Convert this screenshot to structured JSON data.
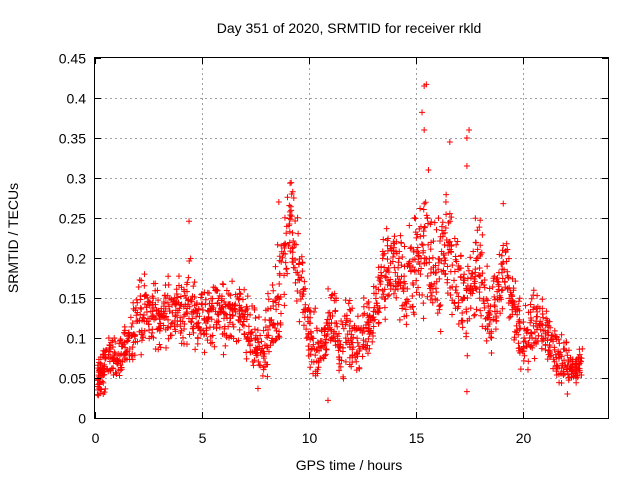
{
  "chart_data": {
    "type": "scatter",
    "title": "Day 351 of 2020, SRMTID for receiver rkld",
    "xlabel": "GPS time / hours",
    "ylabel": "SRMTID / TECUs",
    "xlim": [
      0,
      24
    ],
    "ylim": [
      0,
      0.45
    ],
    "xticks": [
      0,
      5,
      10,
      15,
      20
    ],
    "xtick_labels": [
      "0",
      "5",
      "10",
      "15",
      "20"
    ],
    "yticks": [
      0,
      0.05,
      0.1,
      0.15,
      0.2,
      0.25,
      0.3,
      0.35,
      0.4,
      0.45
    ],
    "ytick_labels": [
      "0",
      "0.05",
      "0.1",
      "0.15",
      "0.2",
      "0.25",
      "0.3",
      "0.35",
      "0.4",
      "0.45"
    ],
    "grid": true,
    "marker": "+",
    "color": "#ff0000",
    "series": [
      {
        "name": "SRMTID",
        "x": [
          0.1,
          0.2,
          0.3,
          0.4,
          0.6,
          0.8,
          1.0,
          1.2,
          1.4,
          1.6,
          1.8,
          2.0,
          2.2,
          2.4,
          2.6,
          2.8,
          3.0,
          3.2,
          3.4,
          3.6,
          3.8,
          4.0,
          4.2,
          4.4,
          4.6,
          4.8,
          5.0,
          5.2,
          5.4,
          5.6,
          5.8,
          6.0,
          6.2,
          6.4,
          6.6,
          6.8,
          7.0,
          7.2,
          7.4,
          7.6,
          7.8,
          8.0,
          8.2,
          8.4,
          8.6,
          8.8,
          9.0,
          9.2,
          9.4,
          9.6,
          9.8,
          10.0,
          10.2,
          10.4,
          10.6,
          10.8,
          11.0,
          11.2,
          11.4,
          11.6,
          11.8,
          12.0,
          12.2,
          12.4,
          12.6,
          12.8,
          13.0,
          13.2,
          13.4,
          13.6,
          13.8,
          14.0,
          14.2,
          14.4,
          14.6,
          14.8,
          15.0,
          15.2,
          15.4,
          15.6,
          15.8,
          16.0,
          16.2,
          16.4,
          16.6,
          16.8,
          17.0,
          17.2,
          17.4,
          17.6,
          17.8,
          18.0,
          18.2,
          18.4,
          18.6,
          18.8,
          19.0,
          19.2,
          19.4,
          19.6,
          19.8,
          20.0,
          20.2,
          20.4,
          20.6,
          20.8,
          21.0,
          21.2,
          21.4,
          21.6,
          21.8,
          22.0,
          22.2,
          22.4,
          22.6,
          22.8
        ],
        "y": [
          0.045,
          0.055,
          0.06,
          0.065,
          0.07,
          0.075,
          0.08,
          0.075,
          0.09,
          0.1,
          0.115,
          0.13,
          0.12,
          0.135,
          0.125,
          0.13,
          0.12,
          0.14,
          0.13,
          0.125,
          0.135,
          0.13,
          0.14,
          0.15,
          0.14,
          0.12,
          0.135,
          0.13,
          0.125,
          0.14,
          0.135,
          0.12,
          0.13,
          0.125,
          0.14,
          0.13,
          0.115,
          0.11,
          0.1,
          0.09,
          0.085,
          0.09,
          0.11,
          0.13,
          0.16,
          0.19,
          0.22,
          0.24,
          0.2,
          0.17,
          0.14,
          0.11,
          0.09,
          0.08,
          0.085,
          0.1,
          0.12,
          0.13,
          0.1,
          0.09,
          0.11,
          0.095,
          0.09,
          0.1,
          0.115,
          0.12,
          0.13,
          0.15,
          0.17,
          0.18,
          0.185,
          0.19,
          0.18,
          0.17,
          0.16,
          0.18,
          0.2,
          0.21,
          0.22,
          0.2,
          0.18,
          0.17,
          0.2,
          0.22,
          0.21,
          0.19,
          0.17,
          0.15,
          0.14,
          0.16,
          0.18,
          0.2,
          0.15,
          0.13,
          0.12,
          0.14,
          0.18,
          0.2,
          0.16,
          0.13,
          0.12,
          0.11,
          0.1,
          0.11,
          0.12,
          0.13,
          0.12,
          0.1,
          0.09,
          0.08,
          0.075,
          0.07,
          0.065,
          0.06,
          0.06,
          0.065
        ],
        "spread": [
          0.02,
          0.02,
          0.025,
          0.025,
          0.025,
          0.025,
          0.025,
          0.025,
          0.025,
          0.03,
          0.03,
          0.035,
          0.035,
          0.035,
          0.035,
          0.035,
          0.035,
          0.035,
          0.035,
          0.035,
          0.035,
          0.035,
          0.04,
          0.05,
          0.04,
          0.035,
          0.035,
          0.035,
          0.035,
          0.035,
          0.035,
          0.035,
          0.035,
          0.035,
          0.035,
          0.035,
          0.035,
          0.035,
          0.035,
          0.035,
          0.035,
          0.04,
          0.04,
          0.05,
          0.06,
          0.06,
          0.06,
          0.06,
          0.05,
          0.045,
          0.04,
          0.035,
          0.035,
          0.035,
          0.035,
          0.035,
          0.035,
          0.035,
          0.035,
          0.035,
          0.035,
          0.035,
          0.035,
          0.035,
          0.035,
          0.035,
          0.04,
          0.04,
          0.045,
          0.045,
          0.045,
          0.05,
          0.05,
          0.045,
          0.05,
          0.06,
          0.07,
          0.07,
          0.07,
          0.06,
          0.05,
          0.05,
          0.06,
          0.07,
          0.07,
          0.06,
          0.05,
          0.05,
          0.05,
          0.05,
          0.05,
          0.05,
          0.04,
          0.04,
          0.04,
          0.04,
          0.04,
          0.04,
          0.04,
          0.035,
          0.035,
          0.035,
          0.035,
          0.035,
          0.035,
          0.035,
          0.03,
          0.03,
          0.03,
          0.025,
          0.025,
          0.025,
          0.02,
          0.02,
          0.02,
          0.02
        ]
      }
    ],
    "notable_points": [
      {
        "x": 15.4,
        "y": 0.415
      },
      {
        "x": 15.5,
        "y": 0.417
      },
      {
        "x": 15.3,
        "y": 0.382
      },
      {
        "x": 15.4,
        "y": 0.36
      },
      {
        "x": 17.5,
        "y": 0.36
      },
      {
        "x": 17.4,
        "y": 0.35
      },
      {
        "x": 16.6,
        "y": 0.345
      },
      {
        "x": 17.4,
        "y": 0.315
      },
      {
        "x": 15.6,
        "y": 0.31
      },
      {
        "x": 9.2,
        "y": 0.28
      },
      {
        "x": 9.3,
        "y": 0.275
      },
      {
        "x": 8.6,
        "y": 0.27
      },
      {
        "x": 19.1,
        "y": 0.268
      },
      {
        "x": 4.4,
        "y": 0.246
      },
      {
        "x": 17.4,
        "y": 0.033
      },
      {
        "x": 10.9,
        "y": 0.022
      },
      {
        "x": 22.1,
        "y": 0.03
      }
    ]
  }
}
